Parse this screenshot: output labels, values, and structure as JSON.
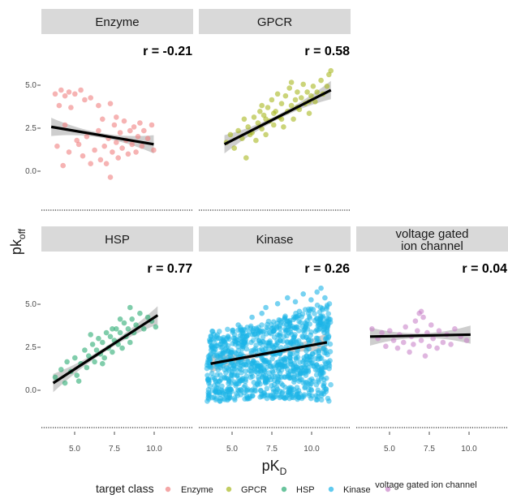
{
  "chart_data": {
    "type": "scatter",
    "xlabel": {
      "main": "pK",
      "sub": "D"
    },
    "ylabel": {
      "main": "pk",
      "sub": "off"
    },
    "x_ticks": [
      "5.0",
      "7.5",
      "10.0"
    ],
    "y_ticks": [
      "5.0",
      "2.5",
      "0.0"
    ],
    "xlim": [
      3.8,
      11.5
    ],
    "ylim": [
      -2.1,
      5.4
    ],
    "legend": {
      "title": "target class",
      "position": "bottom",
      "entries": [
        "Enzyme",
        "GPCR",
        "HSP",
        "Kinase",
        "voltage gated ion channel"
      ]
    },
    "panels": [
      {
        "name": "Enzyme",
        "strip": [
          "Enzyme"
        ],
        "r_label": "r = -0.21",
        "color": "#f08080",
        "fit": {
          "x": [
            4.3,
            9.5
          ],
          "y": [
            2.2,
            1.3
          ]
        },
        "points": [
          [
            4.5,
            3.9
          ],
          [
            4.8,
            4.1
          ],
          [
            5.0,
            3.8
          ],
          [
            5.2,
            4.0
          ],
          [
            5.5,
            3.9
          ],
          [
            5.8,
            4.1
          ],
          [
            6.0,
            3.6
          ],
          [
            6.3,
            3.7
          ],
          [
            4.7,
            3.3
          ],
          [
            5.3,
            3.2
          ],
          [
            6.7,
            3.3
          ],
          [
            7.3,
            3.4
          ],
          [
            4.6,
            1.2
          ],
          [
            5.0,
            2.3
          ],
          [
            5.2,
            0.9
          ],
          [
            5.6,
            1.5
          ],
          [
            5.9,
            0.7
          ],
          [
            6.1,
            1.7
          ],
          [
            6.3,
            0.3
          ],
          [
            6.5,
            1.0
          ],
          [
            6.7,
            2.0
          ],
          [
            6.8,
            0.5
          ],
          [
            7.0,
            1.2
          ],
          [
            7.1,
            0.3
          ],
          [
            7.2,
            1.6
          ],
          [
            7.3,
            -0.4
          ],
          [
            7.4,
            0.9
          ],
          [
            7.5,
            2.3
          ],
          [
            7.6,
            1.4
          ],
          [
            7.7,
            0.6
          ],
          [
            7.8,
            1.9
          ],
          [
            7.9,
            1.1
          ],
          [
            8.0,
            2.5
          ],
          [
            8.1,
            1.5
          ],
          [
            8.2,
            0.8
          ],
          [
            8.3,
            2.0
          ],
          [
            8.4,
            1.3
          ],
          [
            8.5,
            2.2
          ],
          [
            8.6,
            0.9
          ],
          [
            8.7,
            1.7
          ],
          [
            8.8,
            2.4
          ],
          [
            8.9,
            1.2
          ],
          [
            9.0,
            2.0
          ],
          [
            9.2,
            1.6
          ],
          [
            9.4,
            2.3
          ],
          [
            9.5,
            1.0
          ],
          [
            6.9,
            2.6
          ],
          [
            7.6,
            2.7
          ],
          [
            5.7,
            1.3
          ],
          [
            4.9,
            0.2
          ]
        ]
      },
      {
        "name": "GPCR",
        "strip": [
          "GPCR"
        ],
        "r_label": "r = 0.58",
        "color": "#a8b820",
        "fit": {
          "x": [
            5.1,
            10.5
          ],
          "y": [
            1.3,
            4.1
          ]
        },
        "points": [
          [
            5.2,
            1.4
          ],
          [
            5.4,
            1.8
          ],
          [
            5.6,
            1.1
          ],
          [
            5.8,
            2.0
          ],
          [
            6.0,
            1.6
          ],
          [
            6.1,
            2.6
          ],
          [
            6.2,
            0.6
          ],
          [
            6.3,
            2.2
          ],
          [
            6.5,
            1.9
          ],
          [
            6.6,
            2.7
          ],
          [
            6.7,
            1.5
          ],
          [
            6.8,
            2.4
          ],
          [
            6.9,
            3.0
          ],
          [
            7.0,
            2.1
          ],
          [
            7.1,
            2.8
          ],
          [
            7.2,
            1.8
          ],
          [
            7.3,
            3.2
          ],
          [
            7.4,
            2.5
          ],
          [
            7.5,
            3.6
          ],
          [
            7.6,
            2.3
          ],
          [
            7.7,
            3.0
          ],
          [
            7.8,
            3.9
          ],
          [
            7.9,
            2.7
          ],
          [
            8.0,
            3.4
          ],
          [
            8.1,
            2.2
          ],
          [
            8.2,
            3.8
          ],
          [
            8.3,
            3.0
          ],
          [
            8.4,
            4.2
          ],
          [
            8.5,
            3.3
          ],
          [
            8.6,
            2.6
          ],
          [
            8.7,
            3.6
          ],
          [
            8.8,
            4.0
          ],
          [
            8.9,
            3.1
          ],
          [
            9.0,
            3.7
          ],
          [
            9.1,
            4.4
          ],
          [
            9.2,
            3.4
          ],
          [
            9.3,
            4.0
          ],
          [
            9.4,
            2.9
          ],
          [
            9.5,
            3.8
          ],
          [
            9.6,
            4.3
          ],
          [
            9.7,
            3.5
          ],
          [
            9.8,
            4.0
          ],
          [
            10.0,
            4.6
          ],
          [
            10.1,
            3.9
          ],
          [
            10.3,
            4.3
          ],
          [
            10.4,
            4.9
          ],
          [
            10.5,
            5.1
          ],
          [
            7.6,
            2.9
          ],
          [
            8.0,
            2.6
          ],
          [
            8.8,
            3.2
          ],
          [
            7.2,
            2.6
          ],
          [
            6.4,
            1.8
          ],
          [
            9.4,
            3.5
          ],
          [
            8.5,
            4.5
          ],
          [
            7.0,
            3.3
          ]
        ]
      },
      {
        "name": "HSP",
        "strip": [
          "HSP"
        ],
        "r_label": "r = 0.77",
        "color": "#2bab73",
        "fit": {
          "x": [
            4.4,
            9.7
          ],
          "y": [
            0.2,
            3.7
          ]
        },
        "points": [
          [
            4.5,
            0.5
          ],
          [
            4.8,
            0.9
          ],
          [
            5.0,
            0.2
          ],
          [
            5.1,
            1.3
          ],
          [
            5.3,
            0.8
          ],
          [
            5.5,
            1.5
          ],
          [
            5.6,
            0.6
          ],
          [
            5.8,
            1.2
          ],
          [
            6.0,
            1.9
          ],
          [
            6.1,
            1.0
          ],
          [
            6.2,
            1.6
          ],
          [
            6.4,
            2.2
          ],
          [
            6.5,
            1.3
          ],
          [
            6.6,
            1.9
          ],
          [
            6.7,
            2.5
          ],
          [
            6.8,
            1.7
          ],
          [
            6.9,
            2.3
          ],
          [
            7.0,
            1.5
          ],
          [
            7.1,
            2.8
          ],
          [
            7.2,
            2.0
          ],
          [
            7.3,
            2.6
          ],
          [
            7.4,
            1.8
          ],
          [
            7.5,
            2.4
          ],
          [
            7.6,
            3.0
          ],
          [
            7.7,
            2.2
          ],
          [
            7.8,
            2.8
          ],
          [
            7.9,
            2.0
          ],
          [
            8.0,
            3.3
          ],
          [
            8.1,
            2.6
          ],
          [
            8.2,
            3.0
          ],
          [
            8.3,
            2.3
          ],
          [
            8.4,
            3.5
          ],
          [
            8.5,
            2.8
          ],
          [
            8.6,
            3.2
          ],
          [
            8.8,
            3.8
          ],
          [
            9.0,
            3.0
          ],
          [
            9.2,
            3.6
          ],
          [
            9.4,
            3.4
          ],
          [
            9.6,
            3.1
          ],
          [
            8.3,
            4.1
          ],
          [
            7.4,
            3.0
          ],
          [
            6.9,
            1.2
          ],
          [
            5.7,
            0.3
          ],
          [
            6.3,
            2.7
          ],
          [
            7.8,
            3.5
          ]
        ]
      },
      {
        "name": "Kinase",
        "strip": [
          "Kinase"
        ],
        "r_label": "r = 0.26",
        "color": "#1cb4e8",
        "fit": {
          "x": [
            4.4,
            10.3
          ],
          "y": [
            1.2,
            2.3
          ]
        },
        "dense_region": {
          "x": [
            4.2,
            10.5
          ],
          "y_low": -0.8,
          "y_high_left": 2.9,
          "y_high_right": 4.5,
          "n": 950
        },
        "points": [
          [
            7.2,
            4.1
          ],
          [
            7.8,
            4.3
          ],
          [
            8.3,
            4.6
          ],
          [
            8.7,
            4.4
          ],
          [
            9.1,
            4.8
          ],
          [
            9.5,
            4.5
          ],
          [
            9.8,
            4.9
          ],
          [
            10.0,
            5.1
          ],
          [
            10.2,
            4.6
          ],
          [
            8.9,
            3.9
          ],
          [
            9.6,
            4.0
          ],
          [
            7.0,
            3.8
          ],
          [
            6.5,
            3.6
          ],
          [
            5.8,
            3.2
          ],
          [
            10.4,
            3.5
          ],
          [
            9.2,
            3.3
          ]
        ]
      },
      {
        "name": "voltage gated ion channel",
        "strip": [
          "voltage gated",
          "ion channel"
        ],
        "r_label": "r = 0.04",
        "color": "#c985c9",
        "fit": {
          "x": [
            4.5,
            9.6
          ],
          "y": [
            2.6,
            2.7
          ]
        },
        "points": [
          [
            4.6,
            3.0
          ],
          [
            4.9,
            2.5
          ],
          [
            5.1,
            2.8
          ],
          [
            5.3,
            2.1
          ],
          [
            5.5,
            2.9
          ],
          [
            5.7,
            2.4
          ],
          [
            5.9,
            2.0
          ],
          [
            6.0,
            2.7
          ],
          [
            6.2,
            2.3
          ],
          [
            6.3,
            3.1
          ],
          [
            6.5,
            1.8
          ],
          [
            6.6,
            2.6
          ],
          [
            6.7,
            2.2
          ],
          [
            6.8,
            3.4
          ],
          [
            6.9,
            2.9
          ],
          [
            7.0,
            3.8
          ],
          [
            7.1,
            2.4
          ],
          [
            7.2,
            3.6
          ],
          [
            7.3,
            1.6
          ],
          [
            7.4,
            2.8
          ],
          [
            7.5,
            2.1
          ],
          [
            7.6,
            3.2
          ],
          [
            7.7,
            2.5
          ],
          [
            7.9,
            2.0
          ],
          [
            8.0,
            2.9
          ],
          [
            8.2,
            2.3
          ],
          [
            8.4,
            2.7
          ],
          [
            8.6,
            2.2
          ],
          [
            8.8,
            3.0
          ],
          [
            9.1,
            2.6
          ],
          [
            9.4,
            2.4
          ],
          [
            7.1,
            3.9
          ]
        ]
      }
    ]
  }
}
